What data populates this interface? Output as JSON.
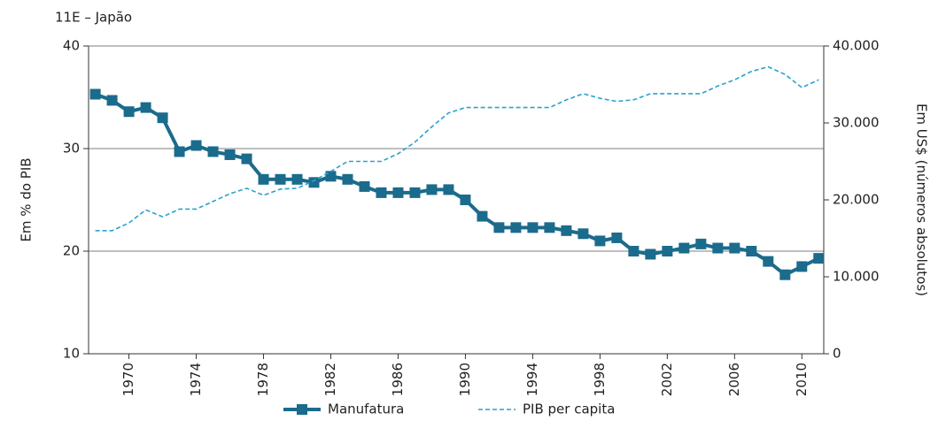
{
  "chart_data": {
    "type": "line",
    "title": "11E – Japão",
    "y_label": "Em % do PIB",
    "y2_label": "Em US$ (números absolutos)",
    "x": [
      1968,
      1969,
      1970,
      1971,
      1972,
      1973,
      1974,
      1975,
      1976,
      1977,
      1978,
      1979,
      1980,
      1981,
      1982,
      1983,
      1984,
      1985,
      1986,
      1987,
      1988,
      1989,
      1990,
      1991,
      1992,
      1993,
      1994,
      1995,
      1996,
      1997,
      1998,
      1999,
      2000,
      2001,
      2002,
      2003,
      2004,
      2005,
      2006,
      2007,
      2008,
      2009,
      2010,
      2011
    ],
    "series": [
      {
        "name": "Manufatura",
        "color": "#1b6b8c",
        "markers": true,
        "values": [
          35.3,
          34.7,
          33.6,
          34.0,
          33.0,
          29.7,
          30.3,
          29.7,
          29.4,
          29.0,
          27.0,
          27.0,
          27.0,
          26.7,
          27.3,
          27.0,
          26.3,
          25.7,
          25.7,
          25.7,
          26.0,
          26.0,
          25.0,
          23.4,
          22.3,
          22.3,
          22.3,
          22.3,
          22.0,
          21.7,
          21.0,
          21.3,
          20.0,
          19.7,
          20.0,
          20.3,
          20.7,
          20.3,
          20.3,
          20.0,
          19.0,
          17.7,
          18.5,
          19.3
        ]
      },
      {
        "name": "PIB per capita",
        "color": "#2aa2cc",
        "dashed": true,
        "axis": "y2",
        "values": [
          16000,
          16000,
          17000,
          18700,
          17800,
          18800,
          18800,
          19800,
          20800,
          21500,
          20600,
          21400,
          21500,
          22500,
          23700,
          25000,
          25000,
          25000,
          26000,
          27500,
          29500,
          31300,
          32000,
          32000,
          32000,
          32000,
          32000,
          32000,
          33000,
          33800,
          33200,
          32800,
          33000,
          33800,
          33800,
          33800,
          33800,
          34800,
          35600,
          36700,
          37300,
          36300,
          34600,
          35600
        ]
      }
    ],
    "xlim": [
      1967.6,
      2011.3
    ],
    "xticks": [
      1970,
      1974,
      1978,
      1982,
      1986,
      1990,
      1994,
      1998,
      2002,
      2006,
      2010
    ],
    "ylim": [
      10,
      40
    ],
    "yticks": [
      10,
      20,
      30,
      40
    ],
    "y2lim": [
      0,
      40000
    ],
    "y2ticks": [
      0,
      {
        "value": 10000,
        "label": "10.000"
      },
      {
        "value": 20000,
        "label": "20.000"
      },
      {
        "value": 30000,
        "label": "30.000"
      },
      {
        "value": 40000,
        "label": "40.000"
      }
    ],
    "grid": true,
    "legend": "bottom"
  }
}
